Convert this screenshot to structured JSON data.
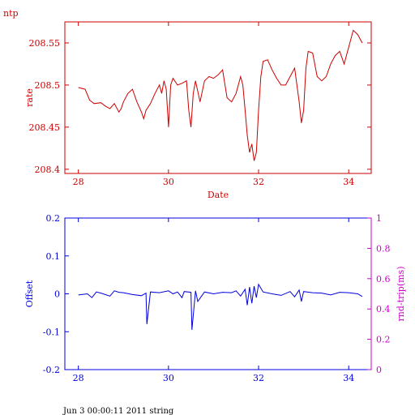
{
  "header_label": "ntp",
  "footer_text": "Jun  3 00:00:11 2011 string",
  "colors": {
    "top": "#cc0000",
    "bottom": "#0000dd",
    "right_axis": "#cc00cc"
  },
  "chart_data": [
    {
      "type": "line",
      "xlabel": "Date",
      "ylabel": "rate",
      "xlim": [
        27.7,
        34.5
      ],
      "ylim": [
        208.395,
        208.575
      ],
      "xticks": [
        28,
        30,
        32,
        34
      ],
      "yticks": [
        208.4,
        208.45,
        208.5,
        208.55
      ],
      "ytick_labels": [
        "208.4",
        "208.45",
        "208.5",
        "208.55"
      ],
      "series": [
        {
          "x": [
            28.0,
            28.15,
            28.25,
            28.35,
            28.5,
            28.6,
            28.7,
            28.8,
            28.9,
            28.95,
            29.0,
            29.1,
            29.2,
            29.3,
            29.4,
            29.45,
            29.5,
            29.6,
            29.7,
            29.8,
            29.85,
            29.9,
            29.95,
            30.0,
            30.05,
            30.1,
            30.2,
            30.3,
            30.4,
            30.45,
            30.5,
            30.55,
            30.6,
            30.7,
            30.8,
            30.9,
            31.0,
            31.1,
            31.2,
            31.3,
            31.4,
            31.5,
            31.6,
            31.65,
            31.7,
            31.75,
            31.8,
            31.85,
            31.9,
            31.95,
            32.0,
            32.05,
            32.1,
            32.2,
            32.3,
            32.4,
            32.5,
            32.6,
            32.7,
            32.8,
            32.9,
            32.95,
            33.0,
            33.05,
            33.1,
            33.2,
            33.3,
            33.4,
            33.5,
            33.6,
            33.7,
            33.8,
            33.9,
            34.0,
            34.1,
            34.2,
            34.3
          ],
          "y": [
            208.497,
            208.495,
            208.482,
            208.478,
            208.479,
            208.475,
            208.472,
            208.478,
            208.468,
            208.472,
            208.48,
            208.49,
            208.495,
            208.48,
            208.468,
            208.46,
            208.47,
            208.478,
            208.49,
            208.5,
            208.49,
            208.505,
            208.495,
            208.45,
            208.5,
            208.508,
            208.5,
            208.502,
            208.505,
            208.47,
            208.45,
            208.49,
            208.505,
            208.48,
            208.505,
            208.51,
            208.508,
            208.512,
            208.518,
            208.485,
            208.48,
            208.49,
            208.51,
            208.5,
            208.47,
            208.44,
            208.42,
            208.43,
            208.41,
            208.42,
            208.47,
            208.51,
            208.528,
            208.53,
            208.518,
            208.508,
            208.5,
            208.5,
            208.51,
            208.52,
            208.48,
            208.455,
            208.47,
            208.52,
            208.54,
            208.538,
            208.51,
            208.505,
            208.51,
            208.525,
            208.535,
            208.54,
            208.525,
            208.545,
            208.565,
            208.56,
            208.55
          ]
        }
      ]
    },
    {
      "type": "line",
      "xlabel": "",
      "ylabel": "Offset",
      "ylabel_right": "rnd-trip(ms)",
      "xlim": [
        27.7,
        34.5
      ],
      "ylim": [
        -0.2,
        0.2
      ],
      "ylim_right": [
        0,
        1
      ],
      "xticks": [
        28,
        30,
        32,
        34
      ],
      "yticks": [
        -0.2,
        -0.1,
        0,
        0.1,
        0.2
      ],
      "ytick_labels": [
        "-0.2",
        "-0.1",
        "0",
        "0.1",
        "0.2"
      ],
      "yticks_right": [
        0,
        0.2,
        0.4,
        0.6,
        0.8,
        1
      ],
      "ytick_labels_right": [
        "0",
        "0.2",
        "0.4",
        "0.6",
        "0.8",
        "1"
      ],
      "series": [
        {
          "x": [
            28.0,
            28.2,
            28.3,
            28.4,
            28.5,
            28.7,
            28.8,
            28.9,
            29.0,
            29.2,
            29.4,
            29.5,
            29.52,
            29.6,
            29.8,
            30.0,
            30.1,
            30.2,
            30.3,
            30.35,
            30.5,
            30.52,
            30.6,
            30.65,
            30.8,
            31.0,
            31.2,
            31.4,
            31.5,
            31.6,
            31.7,
            31.75,
            31.8,
            31.85,
            31.9,
            31.95,
            32.0,
            32.05,
            32.1,
            32.3,
            32.5,
            32.7,
            32.8,
            32.9,
            32.95,
            33.0,
            33.2,
            33.4,
            33.6,
            33.8,
            34.0,
            34.2,
            34.3
          ],
          "y": [
            -0.003,
            0.0,
            -0.01,
            0.005,
            0.002,
            -0.006,
            0.008,
            0.004,
            0.003,
            -0.002,
            -0.005,
            0.002,
            -0.08,
            0.005,
            0.003,
            0.008,
            0.0,
            0.005,
            -0.01,
            0.006,
            0.004,
            -0.095,
            0.008,
            -0.02,
            0.005,
            0.0,
            0.004,
            0.003,
            0.008,
            -0.006,
            0.012,
            -0.03,
            0.018,
            -0.025,
            0.02,
            -0.01,
            0.025,
            0.015,
            0.005,
            0.0,
            -0.004,
            0.006,
            -0.008,
            0.01,
            -0.02,
            0.006,
            0.003,
            0.002,
            -0.003,
            0.004,
            0.003,
            0.0,
            -0.007
          ]
        }
      ]
    }
  ]
}
